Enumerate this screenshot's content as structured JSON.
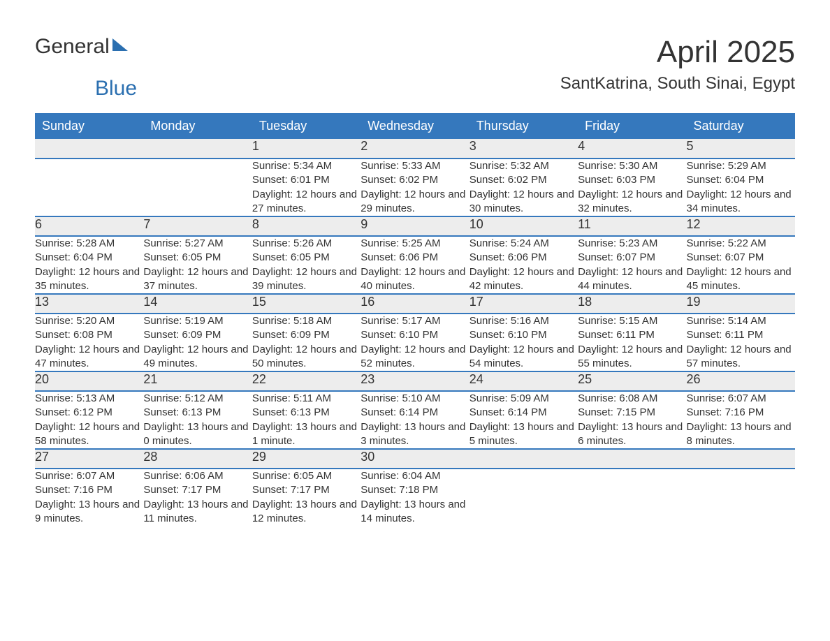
{
  "brand": {
    "general": "General",
    "blue": "Blue",
    "logo_color": "#2b6fb0"
  },
  "title": "April 2025",
  "location": "SantKatrina, South Sinai, Egypt",
  "theme": {
    "header_bg": "#3578bd",
    "header_text": "#ffffff",
    "daynum_bg": "#ededed",
    "border_color": "#3578bd",
    "body_text": "#333333",
    "page_bg": "#ffffff"
  },
  "weekdays": [
    "Sunday",
    "Monday",
    "Tuesday",
    "Wednesday",
    "Thursday",
    "Friday",
    "Saturday"
  ],
  "weeks": [
    [
      null,
      null,
      {
        "day": "1",
        "sunrise": "5:34 AM",
        "sunset": "6:01 PM",
        "daylight": "12 hours and 27 minutes."
      },
      {
        "day": "2",
        "sunrise": "5:33 AM",
        "sunset": "6:02 PM",
        "daylight": "12 hours and 29 minutes."
      },
      {
        "day": "3",
        "sunrise": "5:32 AM",
        "sunset": "6:02 PM",
        "daylight": "12 hours and 30 minutes."
      },
      {
        "day": "4",
        "sunrise": "5:30 AM",
        "sunset": "6:03 PM",
        "daylight": "12 hours and 32 minutes."
      },
      {
        "day": "5",
        "sunrise": "5:29 AM",
        "sunset": "6:04 PM",
        "daylight": "12 hours and 34 minutes."
      }
    ],
    [
      {
        "day": "6",
        "sunrise": "5:28 AM",
        "sunset": "6:04 PM",
        "daylight": "12 hours and 35 minutes."
      },
      {
        "day": "7",
        "sunrise": "5:27 AM",
        "sunset": "6:05 PM",
        "daylight": "12 hours and 37 minutes."
      },
      {
        "day": "8",
        "sunrise": "5:26 AM",
        "sunset": "6:05 PM",
        "daylight": "12 hours and 39 minutes."
      },
      {
        "day": "9",
        "sunrise": "5:25 AM",
        "sunset": "6:06 PM",
        "daylight": "12 hours and 40 minutes."
      },
      {
        "day": "10",
        "sunrise": "5:24 AM",
        "sunset": "6:06 PM",
        "daylight": "12 hours and 42 minutes."
      },
      {
        "day": "11",
        "sunrise": "5:23 AM",
        "sunset": "6:07 PM",
        "daylight": "12 hours and 44 minutes."
      },
      {
        "day": "12",
        "sunrise": "5:22 AM",
        "sunset": "6:07 PM",
        "daylight": "12 hours and 45 minutes."
      }
    ],
    [
      {
        "day": "13",
        "sunrise": "5:20 AM",
        "sunset": "6:08 PM",
        "daylight": "12 hours and 47 minutes."
      },
      {
        "day": "14",
        "sunrise": "5:19 AM",
        "sunset": "6:09 PM",
        "daylight": "12 hours and 49 minutes."
      },
      {
        "day": "15",
        "sunrise": "5:18 AM",
        "sunset": "6:09 PM",
        "daylight": "12 hours and 50 minutes."
      },
      {
        "day": "16",
        "sunrise": "5:17 AM",
        "sunset": "6:10 PM",
        "daylight": "12 hours and 52 minutes."
      },
      {
        "day": "17",
        "sunrise": "5:16 AM",
        "sunset": "6:10 PM",
        "daylight": "12 hours and 54 minutes."
      },
      {
        "day": "18",
        "sunrise": "5:15 AM",
        "sunset": "6:11 PM",
        "daylight": "12 hours and 55 minutes."
      },
      {
        "day": "19",
        "sunrise": "5:14 AM",
        "sunset": "6:11 PM",
        "daylight": "12 hours and 57 minutes."
      }
    ],
    [
      {
        "day": "20",
        "sunrise": "5:13 AM",
        "sunset": "6:12 PM",
        "daylight": "12 hours and 58 minutes."
      },
      {
        "day": "21",
        "sunrise": "5:12 AM",
        "sunset": "6:13 PM",
        "daylight": "13 hours and 0 minutes."
      },
      {
        "day": "22",
        "sunrise": "5:11 AM",
        "sunset": "6:13 PM",
        "daylight": "13 hours and 1 minute."
      },
      {
        "day": "23",
        "sunrise": "5:10 AM",
        "sunset": "6:14 PM",
        "daylight": "13 hours and 3 minutes."
      },
      {
        "day": "24",
        "sunrise": "5:09 AM",
        "sunset": "6:14 PM",
        "daylight": "13 hours and 5 minutes."
      },
      {
        "day": "25",
        "sunrise": "6:08 AM",
        "sunset": "7:15 PM",
        "daylight": "13 hours and 6 minutes."
      },
      {
        "day": "26",
        "sunrise": "6:07 AM",
        "sunset": "7:16 PM",
        "daylight": "13 hours and 8 minutes."
      }
    ],
    [
      {
        "day": "27",
        "sunrise": "6:07 AM",
        "sunset": "7:16 PM",
        "daylight": "13 hours and 9 minutes."
      },
      {
        "day": "28",
        "sunrise": "6:06 AM",
        "sunset": "7:17 PM",
        "daylight": "13 hours and 11 minutes."
      },
      {
        "day": "29",
        "sunrise": "6:05 AM",
        "sunset": "7:17 PM",
        "daylight": "13 hours and 12 minutes."
      },
      {
        "day": "30",
        "sunrise": "6:04 AM",
        "sunset": "7:18 PM",
        "daylight": "13 hours and 14 minutes."
      },
      null,
      null,
      null
    ]
  ],
  "labels": {
    "sunrise": "Sunrise: ",
    "sunset": "Sunset: ",
    "daylight": "Daylight: "
  }
}
